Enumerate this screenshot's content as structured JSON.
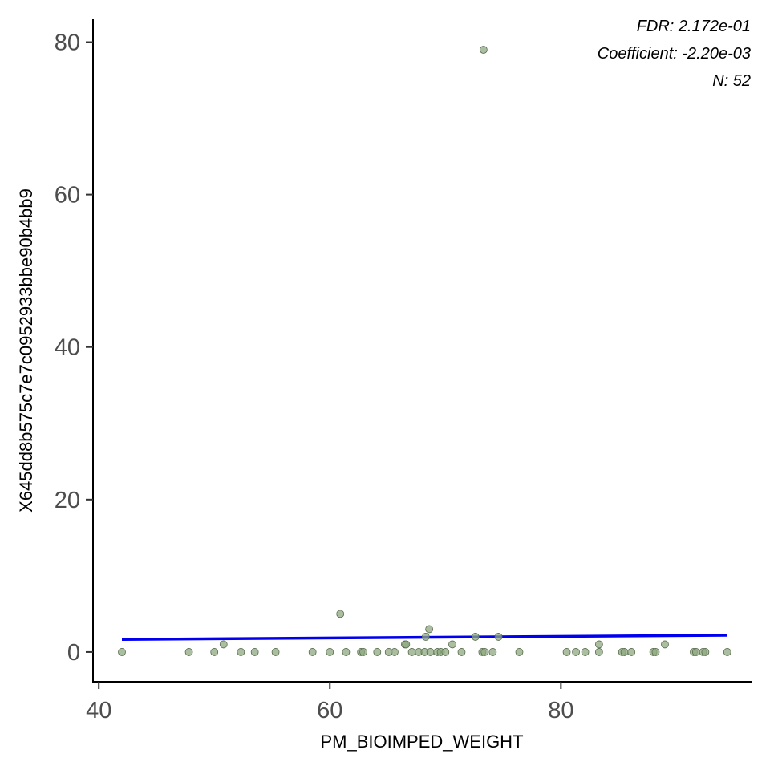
{
  "chart_data": {
    "type": "scatter",
    "xlabel": "PM_BIOIMPED_WEIGHT",
    "ylabel": "X645dd8b575c7e7c0952933bbe90b4bb9",
    "xlim": [
      39.5,
      96.5
    ],
    "ylim": [
      -3.9,
      83
    ],
    "x_ticks": [
      40,
      60,
      80
    ],
    "y_ticks": [
      0,
      20,
      40,
      60,
      80
    ],
    "grid": false,
    "annotations": [
      "FDR: 2.172e-01",
      "Coefficient: -2.20e-03",
      "N: 52"
    ],
    "point_color": "#8fa882",
    "point_edge_color": "#556b48",
    "line_color": "#0000ee",
    "points": [
      {
        "x": 42.0,
        "y": 0
      },
      {
        "x": 47.8,
        "y": 0
      },
      {
        "x": 50.0,
        "y": 0
      },
      {
        "x": 50.8,
        "y": 1
      },
      {
        "x": 52.3,
        "y": 0
      },
      {
        "x": 53.5,
        "y": 0
      },
      {
        "x": 55.3,
        "y": 0
      },
      {
        "x": 58.5,
        "y": 0
      },
      {
        "x": 60.0,
        "y": 0
      },
      {
        "x": 60.9,
        "y": 5
      },
      {
        "x": 61.4,
        "y": 0
      },
      {
        "x": 62.7,
        "y": 0
      },
      {
        "x": 62.9,
        "y": 0
      },
      {
        "x": 64.1,
        "y": 0
      },
      {
        "x": 65.1,
        "y": 0
      },
      {
        "x": 65.6,
        "y": 0
      },
      {
        "x": 66.5,
        "y": 1
      },
      {
        "x": 66.6,
        "y": 1
      },
      {
        "x": 67.1,
        "y": 0
      },
      {
        "x": 67.7,
        "y": 0
      },
      {
        "x": 68.2,
        "y": 0
      },
      {
        "x": 68.3,
        "y": 2
      },
      {
        "x": 68.6,
        "y": 3
      },
      {
        "x": 68.7,
        "y": 0
      },
      {
        "x": 69.3,
        "y": 0
      },
      {
        "x": 69.6,
        "y": 0
      },
      {
        "x": 70.0,
        "y": 0
      },
      {
        "x": 70.6,
        "y": 1
      },
      {
        "x": 71.4,
        "y": 0
      },
      {
        "x": 72.6,
        "y": 2
      },
      {
        "x": 73.2,
        "y": 0
      },
      {
        "x": 73.3,
        "y": 79
      },
      {
        "x": 73.4,
        "y": 0
      },
      {
        "x": 74.1,
        "y": 0
      },
      {
        "x": 74.6,
        "y": 2
      },
      {
        "x": 76.4,
        "y": 0
      },
      {
        "x": 80.5,
        "y": 0
      },
      {
        "x": 81.3,
        "y": 0
      },
      {
        "x": 82.1,
        "y": 0
      },
      {
        "x": 83.3,
        "y": 1
      },
      {
        "x": 83.3,
        "y": 0
      },
      {
        "x": 85.3,
        "y": 0
      },
      {
        "x": 85.5,
        "y": 0
      },
      {
        "x": 86.1,
        "y": 0
      },
      {
        "x": 88.0,
        "y": 0
      },
      {
        "x": 88.2,
        "y": 0
      },
      {
        "x": 89.0,
        "y": 1
      },
      {
        "x": 91.5,
        "y": 0
      },
      {
        "x": 91.7,
        "y": 0
      },
      {
        "x": 92.3,
        "y": 0
      },
      {
        "x": 92.5,
        "y": 0
      },
      {
        "x": 94.4,
        "y": 0
      }
    ],
    "trend_line": {
      "x": [
        42.0,
        94.4
      ],
      "y": [
        1.65,
        2.2
      ]
    }
  }
}
